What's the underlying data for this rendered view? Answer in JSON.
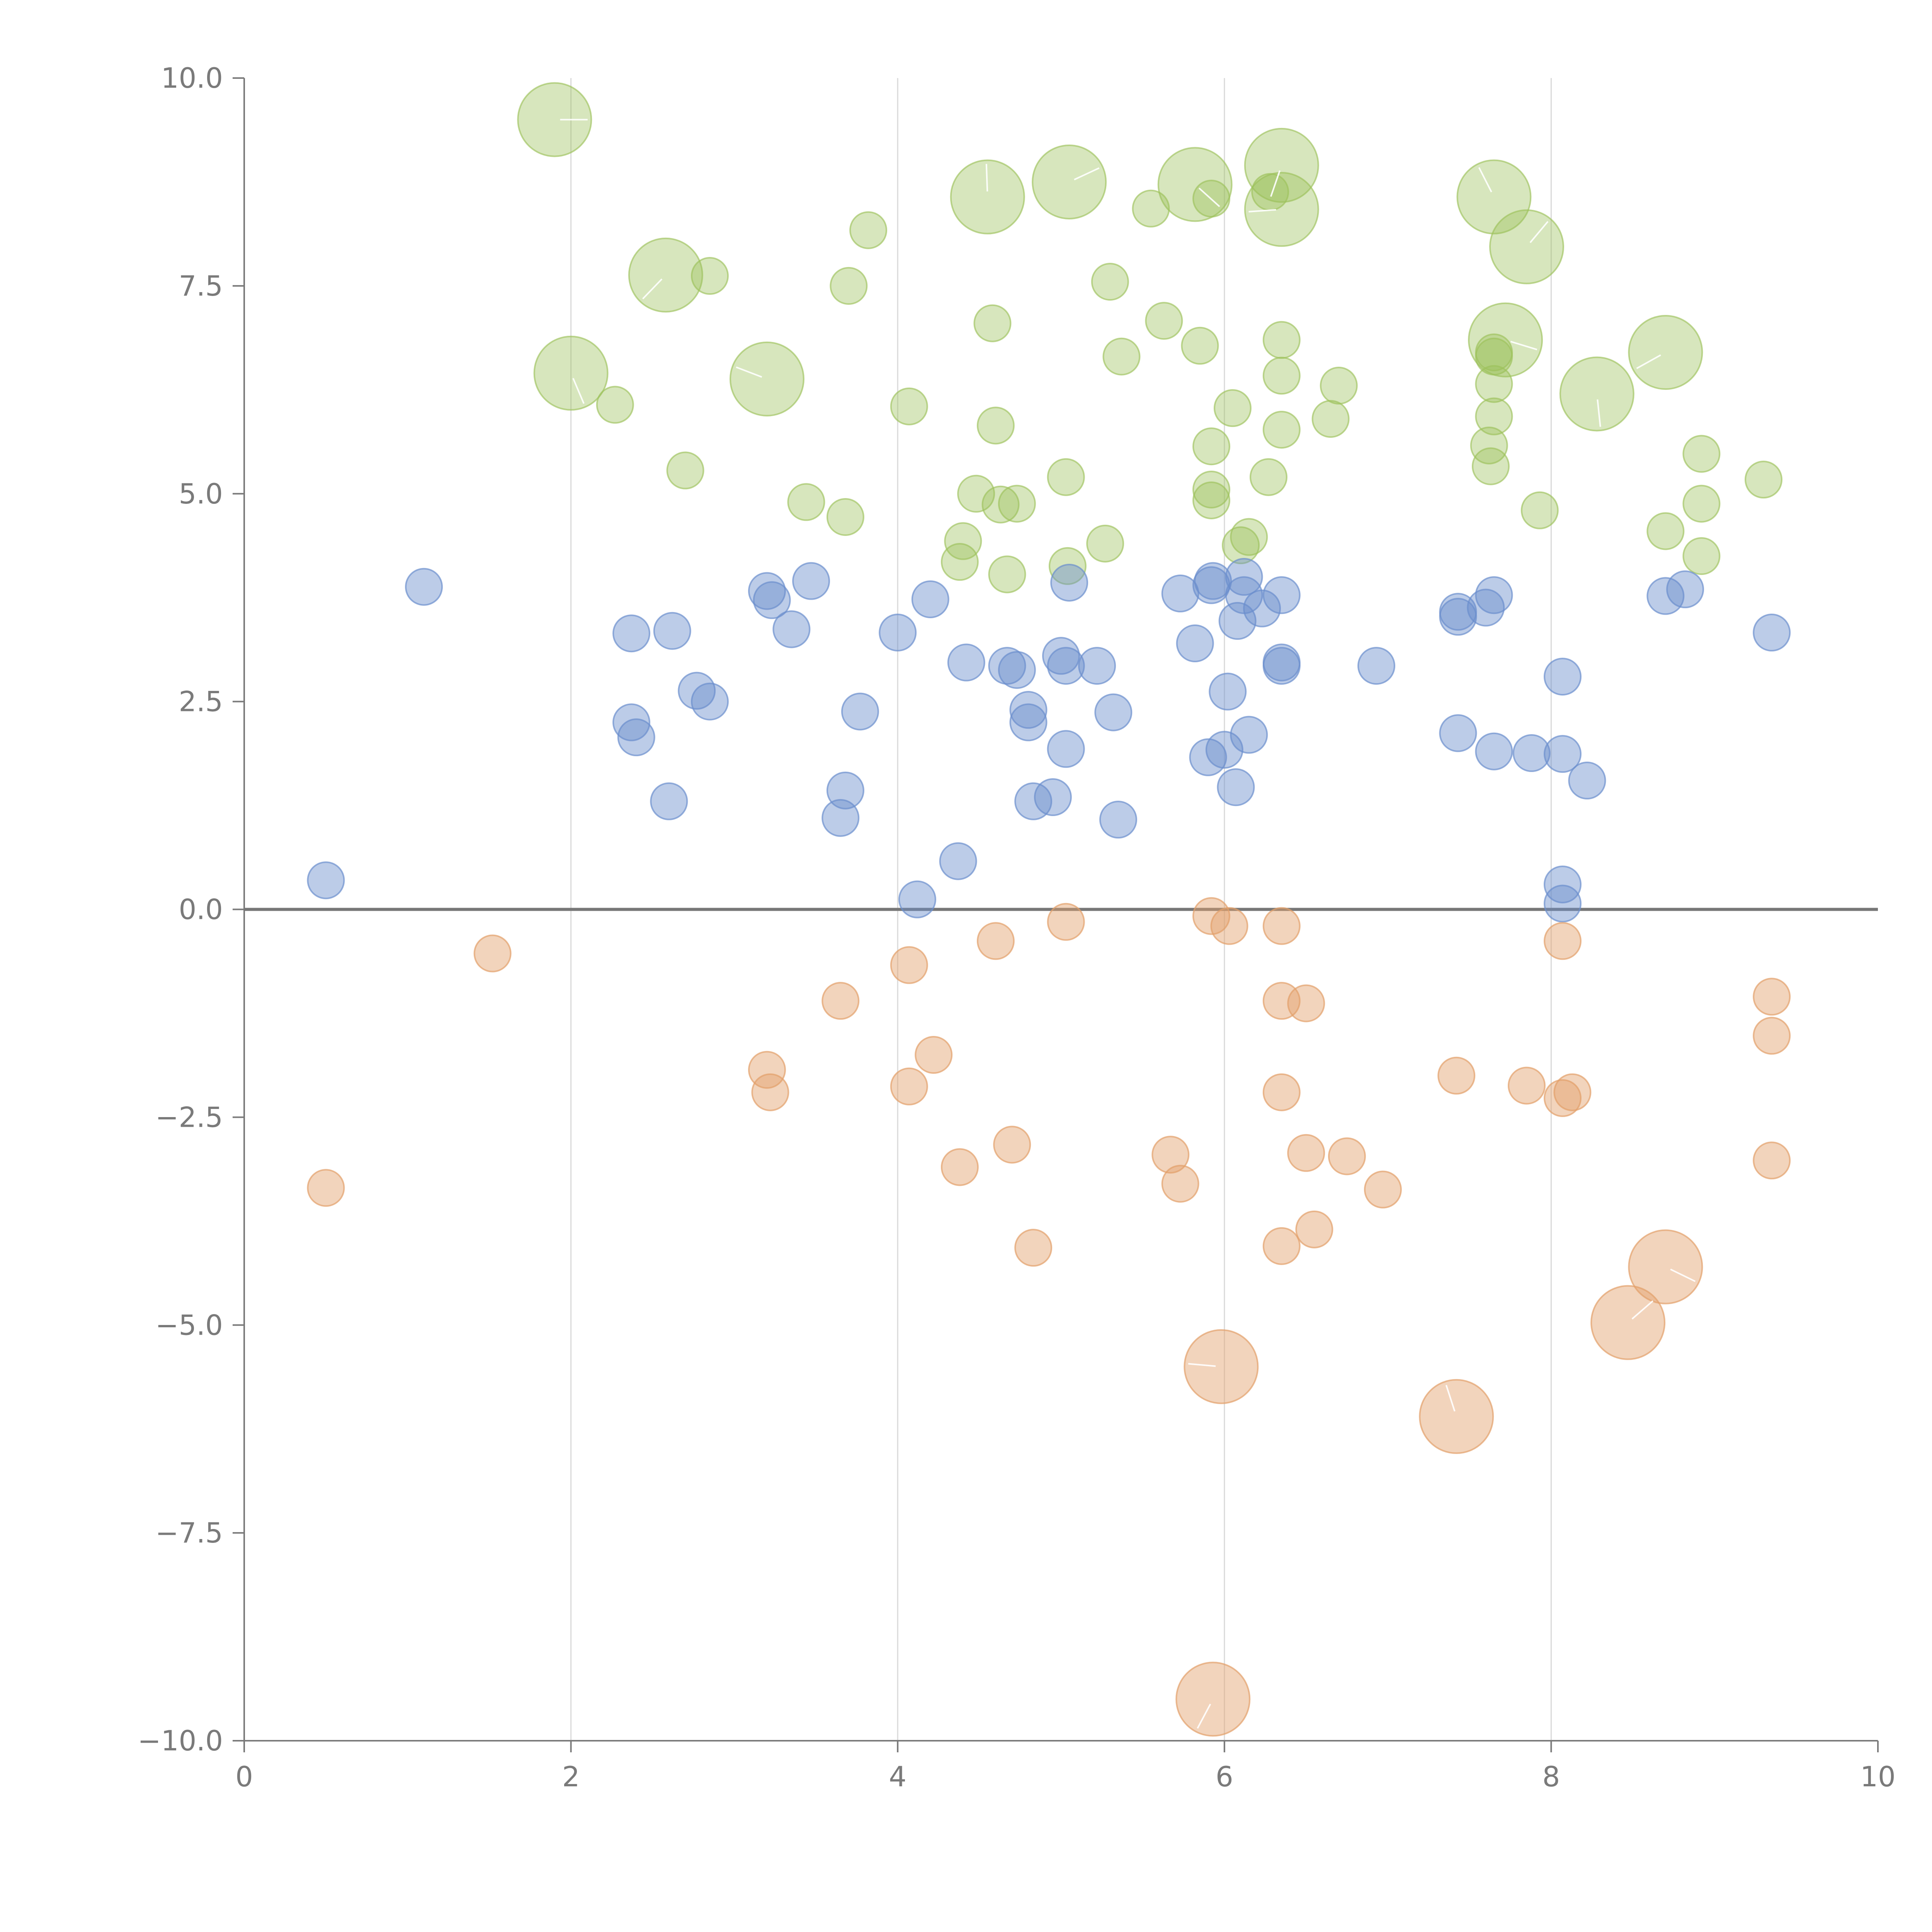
{
  "chart_data": {
    "type": "scatter",
    "subtype": "bubble",
    "title": "",
    "xlabel": "",
    "ylabel": "",
    "xlim": [
      0,
      10
    ],
    "ylim": [
      -10,
      10
    ],
    "x_ticks": [
      0,
      2,
      4,
      6,
      8,
      10
    ],
    "x_tick_labels": [
      "0",
      "2",
      "4",
      "6",
      "8",
      "10"
    ],
    "y_ticks": [
      10,
      7.5,
      5,
      2.5,
      0,
      -2.5,
      -5,
      -7.5,
      -10
    ],
    "y_tick_labels": [
      "10.0",
      "7.5",
      "5.0",
      "2.5",
      "0.0",
      "−2.5",
      "−5.0",
      "−7.5",
      "−10.0"
    ],
    "vertical_gridlines_at_x": [
      2,
      4,
      6,
      8
    ],
    "reference_line_y": 0,
    "legend": "none",
    "series": [
      {
        "name": "green",
        "color": "#9cc15b",
        "fill_opacity": 0.4,
        "points": [
          {
            "x": 1.9,
            "y": 9.5,
            "size": 3
          },
          {
            "x": 2.0,
            "y": 6.45,
            "size": 3
          },
          {
            "x": 2.58,
            "y": 7.63,
            "size": 3
          },
          {
            "x": 3.2,
            "y": 6.38,
            "size": 3
          },
          {
            "x": 4.55,
            "y": 8.57,
            "size": 3
          },
          {
            "x": 5.05,
            "y": 8.75,
            "size": 3
          },
          {
            "x": 5.82,
            "y": 8.72,
            "size": 3
          },
          {
            "x": 6.35,
            "y": 8.95,
            "size": 3
          },
          {
            "x": 6.35,
            "y": 8.42,
            "size": 3
          },
          {
            "x": 7.65,
            "y": 8.57,
            "size": 3
          },
          {
            "x": 7.85,
            "y": 7.97,
            "size": 3
          },
          {
            "x": 7.72,
            "y": 6.85,
            "size": 3
          },
          {
            "x": 8.28,
            "y": 6.2,
            "size": 3
          },
          {
            "x": 8.7,
            "y": 6.7,
            "size": 3
          },
          {
            "x": 2.27,
            "y": 6.07,
            "size": 1
          },
          {
            "x": 2.7,
            "y": 5.28,
            "size": 1
          },
          {
            "x": 2.85,
            "y": 7.62,
            "size": 1
          },
          {
            "x": 3.44,
            "y": 4.9,
            "size": 1
          },
          {
            "x": 3.68,
            "y": 4.72,
            "size": 1
          },
          {
            "x": 3.7,
            "y": 7.5,
            "size": 1
          },
          {
            "x": 3.82,
            "y": 8.17,
            "size": 1
          },
          {
            "x": 4.07,
            "y": 6.05,
            "size": 1
          },
          {
            "x": 4.38,
            "y": 4.18,
            "size": 1
          },
          {
            "x": 4.4,
            "y": 4.43,
            "size": 1
          },
          {
            "x": 4.48,
            "y": 5.0,
            "size": 1
          },
          {
            "x": 4.58,
            "y": 7.05,
            "size": 1
          },
          {
            "x": 4.6,
            "y": 5.82,
            "size": 1
          },
          {
            "x": 4.63,
            "y": 4.87,
            "size": 1
          },
          {
            "x": 4.67,
            "y": 4.03,
            "size": 1
          },
          {
            "x": 4.73,
            "y": 4.88,
            "size": 1
          },
          {
            "x": 5.03,
            "y": 5.2,
            "size": 1
          },
          {
            "x": 5.04,
            "y": 4.13,
            "size": 1
          },
          {
            "x": 5.27,
            "y": 4.4,
            "size": 1
          },
          {
            "x": 5.3,
            "y": 7.55,
            "size": 1
          },
          {
            "x": 5.37,
            "y": 6.65,
            "size": 1
          },
          {
            "x": 5.55,
            "y": 8.43,
            "size": 1
          },
          {
            "x": 5.63,
            "y": 7.08,
            "size": 1
          },
          {
            "x": 5.85,
            "y": 6.78,
            "size": 1
          },
          {
            "x": 5.92,
            "y": 8.55,
            "size": 1
          },
          {
            "x": 5.92,
            "y": 5.57,
            "size": 1
          },
          {
            "x": 5.92,
            "y": 5.05,
            "size": 1
          },
          {
            "x": 5.92,
            "y": 4.92,
            "size": 1
          },
          {
            "x": 6.05,
            "y": 6.03,
            "size": 1
          },
          {
            "x": 6.1,
            "y": 4.38,
            "size": 1
          },
          {
            "x": 6.15,
            "y": 4.48,
            "size": 1
          },
          {
            "x": 6.27,
            "y": 5.2,
            "size": 1
          },
          {
            "x": 6.28,
            "y": 8.63,
            "size": 1
          },
          {
            "x": 6.35,
            "y": 6.85,
            "size": 1
          },
          {
            "x": 6.35,
            "y": 6.42,
            "size": 1
          },
          {
            "x": 6.35,
            "y": 5.77,
            "size": 1
          },
          {
            "x": 6.65,
            "y": 5.9,
            "size": 1
          },
          {
            "x": 6.7,
            "y": 6.3,
            "size": 1
          },
          {
            "x": 7.62,
            "y": 5.58,
            "size": 1
          },
          {
            "x": 7.63,
            "y": 5.33,
            "size": 1
          },
          {
            "x": 7.65,
            "y": 6.7,
            "size": 1
          },
          {
            "x": 7.65,
            "y": 6.65,
            "size": 1
          },
          {
            "x": 7.65,
            "y": 6.32,
            "size": 1
          },
          {
            "x": 7.65,
            "y": 5.93,
            "size": 1
          },
          {
            "x": 7.93,
            "y": 4.8,
            "size": 1
          },
          {
            "x": 8.7,
            "y": 4.55,
            "size": 1
          },
          {
            "x": 8.92,
            "y": 5.48,
            "size": 1
          },
          {
            "x": 8.92,
            "y": 4.88,
            "size": 1
          },
          {
            "x": 8.92,
            "y": 4.25,
            "size": 1
          },
          {
            "x": 9.3,
            "y": 5.17,
            "size": 1
          }
        ]
      },
      {
        "name": "blue",
        "color": "#6b8fcd",
        "fill_opacity": 0.45,
        "points": [
          {
            "x": 0.5,
            "y": 0.35,
            "size": 1
          },
          {
            "x": 1.1,
            "y": 3.88,
            "size": 1
          },
          {
            "x": 2.37,
            "y": 3.32,
            "size": 1
          },
          {
            "x": 2.37,
            "y": 2.25,
            "size": 1
          },
          {
            "x": 2.4,
            "y": 2.07,
            "size": 1
          },
          {
            "x": 2.6,
            "y": 1.3,
            "size": 1
          },
          {
            "x": 2.62,
            "y": 3.35,
            "size": 1
          },
          {
            "x": 2.77,
            "y": 2.63,
            "size": 1
          },
          {
            "x": 2.85,
            "y": 2.5,
            "size": 1
          },
          {
            "x": 3.2,
            "y": 3.83,
            "size": 1
          },
          {
            "x": 3.23,
            "y": 3.72,
            "size": 1
          },
          {
            "x": 3.35,
            "y": 3.37,
            "size": 1
          },
          {
            "x": 3.47,
            "y": 3.95,
            "size": 1
          },
          {
            "x": 3.65,
            "y": 1.1,
            "size": 1
          },
          {
            "x": 3.68,
            "y": 1.43,
            "size": 1
          },
          {
            "x": 3.77,
            "y": 2.38,
            "size": 1
          },
          {
            "x": 4.0,
            "y": 3.33,
            "size": 1
          },
          {
            "x": 4.12,
            "y": 0.12,
            "size": 1
          },
          {
            "x": 4.2,
            "y": 3.73,
            "size": 1
          },
          {
            "x": 4.37,
            "y": 0.58,
            "size": 1
          },
          {
            "x": 4.42,
            "y": 2.97,
            "size": 1
          },
          {
            "x": 4.67,
            "y": 2.93,
            "size": 1
          },
          {
            "x": 4.73,
            "y": 2.88,
            "size": 1
          },
          {
            "x": 4.8,
            "y": 2.4,
            "size": 1
          },
          {
            "x": 4.8,
            "y": 2.25,
            "size": 1
          },
          {
            "x": 4.83,
            "y": 1.3,
            "size": 1
          },
          {
            "x": 4.95,
            "y": 1.35,
            "size": 1
          },
          {
            "x": 5.0,
            "y": 3.05,
            "size": 1
          },
          {
            "x": 5.03,
            "y": 2.93,
            "size": 1
          },
          {
            "x": 5.03,
            "y": 1.93,
            "size": 1
          },
          {
            "x": 5.05,
            "y": 3.93,
            "size": 1
          },
          {
            "x": 5.22,
            "y": 2.93,
            "size": 1
          },
          {
            "x": 5.32,
            "y": 2.37,
            "size": 1
          },
          {
            "x": 5.35,
            "y": 1.08,
            "size": 1
          },
          {
            "x": 5.73,
            "y": 3.8,
            "size": 1
          },
          {
            "x": 5.82,
            "y": 3.2,
            "size": 1
          },
          {
            "x": 5.9,
            "y": 1.83,
            "size": 1
          },
          {
            "x": 5.92,
            "y": 3.9,
            "size": 1
          },
          {
            "x": 5.93,
            "y": 3.95,
            "size": 1
          },
          {
            "x": 6.0,
            "y": 1.92,
            "size": 1
          },
          {
            "x": 6.02,
            "y": 2.62,
            "size": 1
          },
          {
            "x": 6.07,
            "y": 1.47,
            "size": 1
          },
          {
            "x": 6.08,
            "y": 3.47,
            "size": 1
          },
          {
            "x": 6.12,
            "y": 4.0,
            "size": 1
          },
          {
            "x": 6.12,
            "y": 3.78,
            "size": 1
          },
          {
            "x": 6.15,
            "y": 2.1,
            "size": 1
          },
          {
            "x": 6.23,
            "y": 3.62,
            "size": 1
          },
          {
            "x": 6.35,
            "y": 3.78,
            "size": 1
          },
          {
            "x": 6.35,
            "y": 2.97,
            "size": 1
          },
          {
            "x": 6.35,
            "y": 2.93,
            "size": 1
          },
          {
            "x": 6.93,
            "y": 2.93,
            "size": 1
          },
          {
            "x": 7.43,
            "y": 3.58,
            "size": 1
          },
          {
            "x": 7.43,
            "y": 3.52,
            "size": 1
          },
          {
            "x": 7.43,
            "y": 2.12,
            "size": 1
          },
          {
            "x": 7.6,
            "y": 3.63,
            "size": 1
          },
          {
            "x": 7.65,
            "y": 3.78,
            "size": 1
          },
          {
            "x": 7.65,
            "y": 1.9,
            "size": 1
          },
          {
            "x": 7.88,
            "y": 1.88,
            "size": 1
          },
          {
            "x": 8.07,
            "y": 2.8,
            "size": 1
          },
          {
            "x": 8.07,
            "y": 1.87,
            "size": 1
          },
          {
            "x": 8.07,
            "y": 0.3,
            "size": 1
          },
          {
            "x": 8.07,
            "y": 0.07,
            "size": 1
          },
          {
            "x": 8.22,
            "y": 1.55,
            "size": 1
          },
          {
            "x": 8.7,
            "y": 3.77,
            "size": 1
          },
          {
            "x": 8.82,
            "y": 3.85,
            "size": 1
          },
          {
            "x": 9.35,
            "y": 3.33,
            "size": 1
          }
        ]
      },
      {
        "name": "orange",
        "color": "#e3a06a",
        "fill_opacity": 0.45,
        "points": [
          {
            "x": 0.5,
            "y": -3.35,
            "size": 1
          },
          {
            "x": 1.52,
            "y": -0.53,
            "size": 1
          },
          {
            "x": 3.2,
            "y": -1.93,
            "size": 1
          },
          {
            "x": 3.22,
            "y": -2.2,
            "size": 1
          },
          {
            "x": 3.65,
            "y": -1.1,
            "size": 1
          },
          {
            "x": 4.07,
            "y": -0.67,
            "size": 1
          },
          {
            "x": 4.07,
            "y": -2.13,
            "size": 1
          },
          {
            "x": 4.22,
            "y": -1.75,
            "size": 1
          },
          {
            "x": 4.38,
            "y": -3.1,
            "size": 1
          },
          {
            "x": 4.6,
            "y": -0.38,
            "size": 1
          },
          {
            "x": 4.7,
            "y": -2.83,
            "size": 1
          },
          {
            "x": 4.83,
            "y": -4.07,
            "size": 1
          },
          {
            "x": 5.03,
            "y": -0.15,
            "size": 1
          },
          {
            "x": 5.67,
            "y": -2.95,
            "size": 1
          },
          {
            "x": 5.73,
            "y": -3.3,
            "size": 1
          },
          {
            "x": 5.92,
            "y": -0.08,
            "size": 1
          },
          {
            "x": 6.03,
            "y": -0.2,
            "size": 1
          },
          {
            "x": 6.35,
            "y": -0.2,
            "size": 1
          },
          {
            "x": 6.35,
            "y": -1.1,
            "size": 1
          },
          {
            "x": 6.35,
            "y": -2.2,
            "size": 1
          },
          {
            "x": 6.35,
            "y": -4.05,
            "size": 1
          },
          {
            "x": 6.5,
            "y": -1.13,
            "size": 1
          },
          {
            "x": 6.5,
            "y": -2.93,
            "size": 1
          },
          {
            "x": 6.55,
            "y": -3.85,
            "size": 1
          },
          {
            "x": 6.75,
            "y": -2.97,
            "size": 1
          },
          {
            "x": 6.97,
            "y": -3.37,
            "size": 1
          },
          {
            "x": 7.42,
            "y": -2.0,
            "size": 1
          },
          {
            "x": 7.85,
            "y": -2.12,
            "size": 1
          },
          {
            "x": 8.07,
            "y": -0.38,
            "size": 1
          },
          {
            "x": 8.07,
            "y": -2.27,
            "size": 1
          },
          {
            "x": 8.13,
            "y": -2.2,
            "size": 1
          },
          {
            "x": 9.35,
            "y": -1.05,
            "size": 1
          },
          {
            "x": 9.35,
            "y": -1.52,
            "size": 1
          },
          {
            "x": 9.35,
            "y": -3.02,
            "size": 1
          },
          {
            "x": 5.93,
            "y": -9.5,
            "size": 3
          },
          {
            "x": 5.98,
            "y": -5.5,
            "size": 3
          },
          {
            "x": 7.42,
            "y": -6.1,
            "size": 3
          },
          {
            "x": 8.47,
            "y": -4.97,
            "size": 3
          },
          {
            "x": 8.7,
            "y": -4.3,
            "size": 3
          }
        ]
      }
    ]
  }
}
